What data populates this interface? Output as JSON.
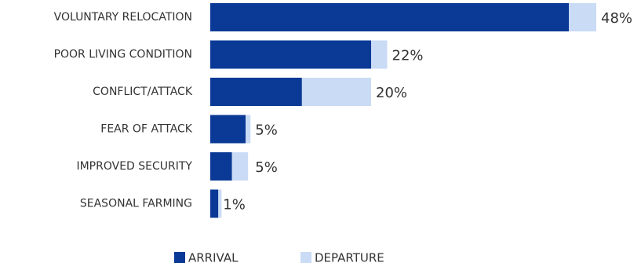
{
  "chart_data": {
    "type": "stacked-barh",
    "categories": [
      "VOLUNTARY RELOCATION",
      "POOR LIVING CONDITION",
      "CONFLICT/ATTACK",
      "FEAR OF ATTACK",
      "IMPROVED SECURITY",
      "SEASONAL FARMING"
    ],
    "series": [
      {
        "name": "ARRIVAL",
        "color": "#0a3a96",
        "values": [
          44.6,
          20,
          11.4,
          4.4,
          2.7,
          1.0
        ]
      },
      {
        "name": "DEPARTURE",
        "color": "#c9dbf5",
        "values": [
          3.4,
          2,
          8.6,
          0.6,
          2.0,
          0.4
        ]
      }
    ],
    "totals": [
      48,
      22,
      20,
      5,
      5,
      1
    ],
    "total_labels": [
      "48%",
      "22%",
      "20%",
      "5%",
      "5%",
      "1%"
    ]
  }
}
